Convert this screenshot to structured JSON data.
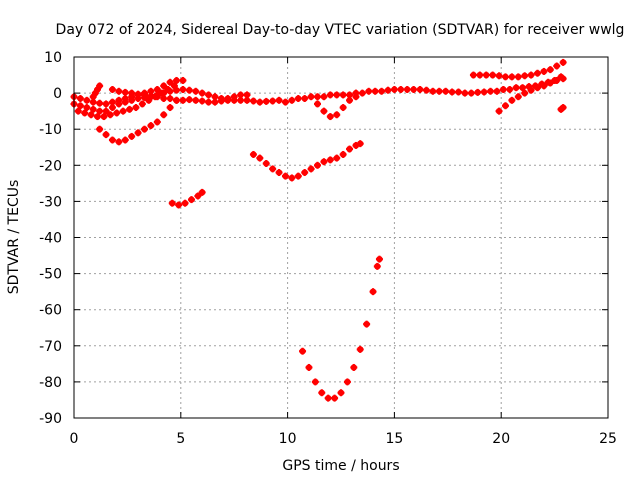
{
  "chart_data": {
    "type": "scatter",
    "title": "Day 072 of 2024, Sidereal Day-to-day VTEC variation (SDTVAR) for receiver wwlg",
    "xlabel": "GPS time / hours",
    "ylabel": "SDTVAR / TECUs",
    "xlim": [
      0,
      25
    ],
    "ylim": [
      -90,
      10
    ],
    "x_ticks": [
      0,
      5,
      10,
      15,
      20,
      25
    ],
    "y_ticks": [
      10,
      0,
      -10,
      -20,
      -30,
      -40,
      -50,
      -60,
      -70,
      -80,
      -90
    ],
    "grid": true,
    "marker_color": "#ff0000",
    "series": [
      {
        "points": [
          [
            0.0,
            -3
          ],
          [
            0.3,
            -3.5
          ],
          [
            0.6,
            -4
          ],
          [
            0.9,
            -4.5
          ],
          [
            1.2,
            -5
          ],
          [
            1.5,
            -5
          ],
          [
            1.8,
            -4
          ],
          [
            2.1,
            -3
          ],
          [
            2.4,
            -2.5
          ],
          [
            2.7,
            -2
          ],
          [
            3.0,
            -1.5
          ],
          [
            3.3,
            -1.2
          ],
          [
            3.6,
            -1
          ],
          [
            3.9,
            -1
          ],
          [
            4.2,
            -1.5
          ],
          [
            4.5,
            -1.5
          ],
          [
            4.8,
            -2
          ],
          [
            5.1,
            -2
          ],
          [
            5.4,
            -1.8
          ],
          [
            5.7,
            -2
          ],
          [
            6.0,
            -2.2
          ],
          [
            6.3,
            -2.5
          ],
          [
            6.6,
            -2.5
          ],
          [
            6.9,
            -2.2
          ],
          [
            7.2,
            -2
          ],
          [
            7.5,
            -2
          ],
          [
            7.8,
            -2
          ],
          [
            8.1,
            -2
          ],
          [
            8.4,
            -2.2
          ],
          [
            8.7,
            -2.5
          ],
          [
            9.0,
            -2.3
          ],
          [
            9.3,
            -2.2
          ],
          [
            9.6,
            -2
          ],
          [
            9.9,
            -2.5
          ],
          [
            10.2,
            -2
          ],
          [
            10.5,
            -1.5
          ],
          [
            10.8,
            -1.5
          ],
          [
            11.1,
            -1
          ],
          [
            11.4,
            -1
          ],
          [
            11.7,
            -1
          ],
          [
            12.0,
            -0.5
          ],
          [
            12.3,
            -0.5
          ],
          [
            12.6,
            -0.5
          ],
          [
            12.9,
            -0.5
          ],
          [
            13.2,
            0
          ],
          [
            13.5,
            0
          ],
          [
            13.8,
            0.5
          ],
          [
            14.1,
            0.5
          ],
          [
            14.4,
            0.5
          ],
          [
            14.7,
            0.8
          ],
          [
            15.0,
            1
          ],
          [
            15.3,
            1
          ],
          [
            15.6,
            1
          ],
          [
            15.9,
            1
          ],
          [
            16.2,
            1
          ],
          [
            16.5,
            0.8
          ],
          [
            16.8,
            0.5
          ],
          [
            17.1,
            0.5
          ],
          [
            17.4,
            0.5
          ],
          [
            17.7,
            0.3
          ],
          [
            18.0,
            0.3
          ],
          [
            18.3,
            0
          ],
          [
            18.6,
            0
          ],
          [
            18.9,
            0.2
          ],
          [
            19.2,
            0.3
          ],
          [
            19.5,
            0.5
          ],
          [
            19.8,
            0.5
          ],
          [
            20.1,
            1
          ],
          [
            20.4,
            1
          ],
          [
            20.7,
            1.5
          ],
          [
            21.0,
            1.5
          ],
          [
            21.3,
            1.8
          ],
          [
            21.6,
            2
          ],
          [
            21.9,
            2.5
          ],
          [
            22.2,
            3
          ],
          [
            22.5,
            3.5
          ],
          [
            22.8,
            4.5
          ]
        ]
      },
      {
        "points": [
          [
            0.0,
            -1
          ],
          [
            0.3,
            -1.5
          ],
          [
            0.6,
            -2
          ],
          [
            0.9,
            -2.5
          ],
          [
            1.2,
            -2.8
          ],
          [
            1.5,
            -3
          ],
          [
            1.8,
            -2.5
          ],
          [
            2.1,
            -2
          ],
          [
            2.4,
            -1.5
          ],
          [
            2.7,
            -1
          ],
          [
            3.0,
            -0.5
          ],
          [
            3.3,
            0
          ],
          [
            3.6,
            0.5
          ],
          [
            3.9,
            1
          ],
          [
            4.2,
            2
          ],
          [
            4.5,
            3
          ],
          [
            4.8,
            3.5
          ],
          [
            5.1,
            3.5
          ]
        ]
      },
      {
        "points": [
          [
            0.2,
            -5
          ],
          [
            0.5,
            -5.5
          ],
          [
            0.8,
            -6
          ],
          [
            1.1,
            -6.5
          ],
          [
            1.4,
            -6.5
          ],
          [
            1.7,
            -6
          ],
          [
            2.0,
            -5.5
          ],
          [
            2.3,
            -5
          ],
          [
            2.6,
            -4.5
          ],
          [
            2.9,
            -4
          ],
          [
            3.2,
            -3
          ],
          [
            3.5,
            -2
          ],
          [
            3.8,
            -1
          ],
          [
            4.1,
            0
          ],
          [
            4.4,
            1
          ],
          [
            4.7,
            2
          ]
        ]
      },
      {
        "points": [
          [
            0.9,
            -1
          ],
          [
            1.0,
            0
          ],
          [
            1.1,
            1
          ],
          [
            1.2,
            2
          ]
        ]
      },
      {
        "points": [
          [
            1.8,
            1
          ],
          [
            2.1,
            0.5
          ],
          [
            2.4,
            0.2
          ],
          [
            2.7,
            0
          ],
          [
            3.0,
            -0.3
          ],
          [
            3.3,
            -0.5
          ],
          [
            3.6,
            -0.8
          ],
          [
            3.9,
            -0.5
          ],
          [
            4.2,
            0
          ],
          [
            4.5,
            0.5
          ],
          [
            4.8,
            0.8
          ],
          [
            5.1,
            1
          ],
          [
            5.4,
            0.8
          ],
          [
            5.7,
            0.5
          ],
          [
            6.0,
            0
          ],
          [
            6.3,
            -0.5
          ],
          [
            6.6,
            -1
          ],
          [
            6.9,
            -1.5
          ],
          [
            7.2,
            -1.5
          ],
          [
            7.5,
            -1
          ],
          [
            7.8,
            -0.5
          ],
          [
            8.1,
            -0.5
          ]
        ]
      },
      {
        "points": [
          [
            1.2,
            -10
          ],
          [
            1.5,
            -11.5
          ],
          [
            1.8,
            -13
          ],
          [
            2.1,
            -13.5
          ],
          [
            2.4,
            -13
          ],
          [
            2.7,
            -12
          ],
          [
            3.0,
            -11
          ],
          [
            3.3,
            -10
          ],
          [
            3.6,
            -9
          ],
          [
            3.9,
            -8
          ],
          [
            4.2,
            -6
          ],
          [
            4.5,
            -4
          ],
          [
            4.8,
            -2
          ]
        ]
      },
      {
        "points": [
          [
            4.6,
            -30.5
          ],
          [
            4.9,
            -31
          ],
          [
            5.2,
            -30.5
          ],
          [
            5.5,
            -29.5
          ],
          [
            5.8,
            -28.5
          ],
          [
            6.0,
            -27.5
          ]
        ]
      },
      {
        "points": [
          [
            8.4,
            -17
          ],
          [
            8.7,
            -18
          ],
          [
            9.0,
            -19.5
          ],
          [
            9.3,
            -21
          ],
          [
            9.6,
            -22
          ],
          [
            9.9,
            -23
          ],
          [
            10.2,
            -23.5
          ],
          [
            10.5,
            -23
          ],
          [
            10.8,
            -22
          ],
          [
            11.1,
            -21
          ],
          [
            11.4,
            -20
          ],
          [
            11.7,
            -19
          ],
          [
            12.0,
            -18.5
          ],
          [
            12.3,
            -18
          ],
          [
            12.6,
            -17
          ],
          [
            12.9,
            -15.5
          ],
          [
            13.2,
            -14.5
          ],
          [
            13.4,
            -14
          ]
        ]
      },
      {
        "points": [
          [
            11.4,
            -3
          ],
          [
            11.7,
            -5
          ],
          [
            12.0,
            -6.5
          ],
          [
            12.3,
            -6
          ],
          [
            12.6,
            -4
          ],
          [
            12.9,
            -2
          ],
          [
            13.2,
            -1
          ]
        ]
      },
      {
        "points": [
          [
            10.7,
            -71.5
          ],
          [
            11.0,
            -76
          ],
          [
            11.3,
            -80
          ],
          [
            11.6,
            -83
          ],
          [
            11.9,
            -84.5
          ],
          [
            12.2,
            -84.5
          ],
          [
            12.5,
            -83
          ],
          [
            12.8,
            -80
          ],
          [
            13.1,
            -76
          ],
          [
            13.4,
            -71
          ],
          [
            13.7,
            -64
          ],
          [
            14.0,
            -55
          ],
          [
            14.2,
            -48
          ],
          [
            14.3,
            -46
          ]
        ]
      },
      {
        "points": [
          [
            18.7,
            5
          ],
          [
            19.0,
            5
          ],
          [
            19.3,
            5
          ],
          [
            19.6,
            5
          ],
          [
            19.9,
            4.8
          ],
          [
            20.2,
            4.5
          ],
          [
            20.5,
            4.5
          ],
          [
            20.8,
            4.5
          ],
          [
            21.1,
            4.8
          ],
          [
            21.4,
            5
          ],
          [
            21.7,
            5.5
          ],
          [
            22.0,
            6
          ],
          [
            22.3,
            6.5
          ],
          [
            22.6,
            7.5
          ],
          [
            22.9,
            8.5
          ]
        ]
      },
      {
        "points": [
          [
            19.9,
            -5
          ],
          [
            20.2,
            -3.5
          ],
          [
            20.5,
            -2
          ],
          [
            20.8,
            -1
          ],
          [
            21.1,
            0
          ],
          [
            21.4,
            0.8
          ],
          [
            21.7,
            1.5
          ],
          [
            22.0,
            2
          ],
          [
            22.3,
            2.8
          ],
          [
            22.6,
            3.5
          ],
          [
            22.9,
            4
          ]
        ]
      },
      {
        "points": [
          [
            22.8,
            -4.5
          ],
          [
            22.9,
            -4
          ]
        ]
      }
    ]
  }
}
